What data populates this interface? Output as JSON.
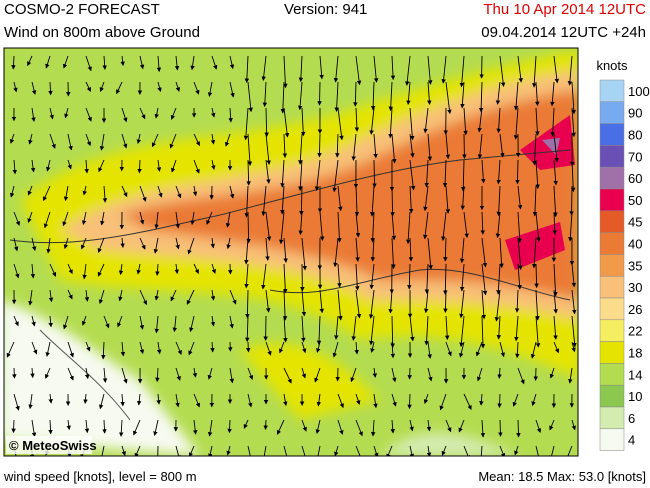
{
  "header": {
    "title": "COSMO-2 FORECAST",
    "version": "Version: 941",
    "valid": "Thu 10 Apr 2014 12UTC",
    "subtitle": "Wind on 800m above Ground",
    "run": "09.04.2014 12UTC +24h"
  },
  "legend": {
    "unit": "knots",
    "levels": [
      {
        "value": 100,
        "color": "#a8d4f4"
      },
      {
        "value": 90,
        "color": "#78aaf0"
      },
      {
        "value": 80,
        "color": "#4a6ee6"
      },
      {
        "value": 70,
        "color": "#6a50b4"
      },
      {
        "value": 60,
        "color": "#a070a8"
      },
      {
        "value": 50,
        "color": "#e8004e"
      },
      {
        "value": 45,
        "color": "#e65a28"
      },
      {
        "value": 40,
        "color": "#ea7a34"
      },
      {
        "value": 35,
        "color": "#f09a4a"
      },
      {
        "value": 30,
        "color": "#f8c078"
      },
      {
        "value": 26,
        "color": "#fadc8a"
      },
      {
        "value": 22,
        "color": "#f4ee60"
      },
      {
        "value": 18,
        "color": "#e4e400"
      },
      {
        "value": 14,
        "color": "#b4dc50"
      },
      {
        "value": 10,
        "color": "#8cc850"
      },
      {
        "value": 6,
        "color": "#d4ecb0"
      },
      {
        "value": 4,
        "color": "#f6faf0"
      }
    ]
  },
  "map": {
    "copyright": "© MeteoSwiss"
  },
  "footer": {
    "left": "wind speed [knots], level = 800 m",
    "right": "Mean:   18.5 Max:   53.0 [knots]"
  }
}
